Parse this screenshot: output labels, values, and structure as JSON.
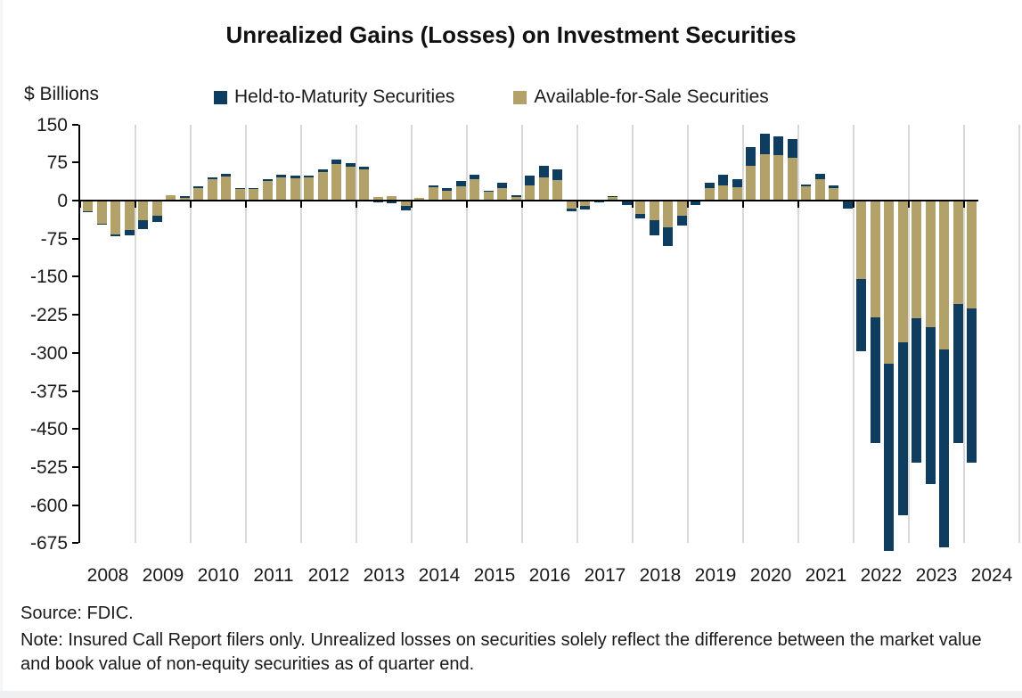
{
  "title": "Unrealized Gains (Losses) on Investment Securities",
  "y_axis_label": "$ Billions",
  "legend": [
    {
      "label": "Held-to-Maturity Securities",
      "color": "#0e3d5f"
    },
    {
      "label": "Available-for-Sale Securities",
      "color": "#b2a168"
    }
  ],
  "source": "Source: FDIC.",
  "note": "Note: Insured Call Report filers only. Unrealized losses on securities solely reflect the difference between the market value and book value of non-equity securities as of quarter end.",
  "colors": {
    "htm": "#0e3d5f",
    "afs": "#b2a168",
    "gridline": "#d9d9d9",
    "axis": "#000000"
  },
  "chart_data": {
    "type": "bar",
    "stacked": true,
    "title": "Unrealized Gains (Losses) on Investment Securities",
    "ylabel": "$ Billions",
    "unit": "USD billions",
    "ylim": [
      -675,
      150
    ],
    "y_ticks": [
      150,
      75,
      0,
      -75,
      -150,
      -225,
      -300,
      -375,
      -450,
      -525,
      -600,
      -675
    ],
    "x_tick_labels": [
      "2008",
      "2009",
      "2010",
      "2011",
      "2012",
      "2013",
      "2014",
      "2015",
      "2016",
      "2017",
      "2018",
      "2019",
      "2020",
      "2021",
      "2022",
      "2023",
      "2024"
    ],
    "quarters": [
      "2008Q1",
      "2008Q2",
      "2008Q3",
      "2008Q4",
      "2009Q1",
      "2009Q2",
      "2009Q3",
      "2009Q4",
      "2010Q1",
      "2010Q2",
      "2010Q3",
      "2010Q4",
      "2011Q1",
      "2011Q2",
      "2011Q3",
      "2011Q4",
      "2012Q1",
      "2012Q2",
      "2012Q3",
      "2012Q4",
      "2013Q1",
      "2013Q2",
      "2013Q3",
      "2013Q4",
      "2014Q1",
      "2014Q2",
      "2014Q3",
      "2014Q4",
      "2015Q1",
      "2015Q2",
      "2015Q3",
      "2015Q4",
      "2016Q1",
      "2016Q2",
      "2016Q3",
      "2016Q4",
      "2017Q1",
      "2017Q2",
      "2017Q3",
      "2017Q4",
      "2018Q1",
      "2018Q2",
      "2018Q3",
      "2018Q4",
      "2019Q1",
      "2019Q2",
      "2019Q3",
      "2019Q4",
      "2020Q1",
      "2020Q2",
      "2020Q3",
      "2020Q4",
      "2021Q1",
      "2021Q2",
      "2021Q3",
      "2021Q4",
      "2022Q1",
      "2022Q2",
      "2022Q3",
      "2022Q4",
      "2023Q1",
      "2023Q2",
      "2023Q3",
      "2023Q4",
      "2024Q1"
    ],
    "series": [
      {
        "name": "Available-for-Sale Securities",
        "color": "#b2a168",
        "values": [
          -21,
          -45,
          -66,
          -58,
          -38,
          -30,
          10,
          6,
          24,
          42,
          48,
          23,
          23,
          39,
          46,
          44,
          45,
          56,
          72,
          67,
          61,
          7,
          9,
          -11,
          5,
          26,
          19,
          28,
          42,
          17,
          25,
          7,
          30,
          46,
          41,
          -15,
          -11,
          0,
          7,
          -2,
          -26,
          -38,
          -53,
          -30,
          0,
          24,
          29,
          27,
          69,
          92,
          90,
          84,
          28,
          43,
          25,
          0,
          -155,
          -230,
          -322,
          -280,
          -232,
          -249,
          -294,
          -204,
          -212
        ]
      },
      {
        "name": "Held-to-Maturity Securities",
        "color": "#0e3d5f",
        "values": [
          -1,
          -3,
          -4,
          -10,
          -18,
          -12,
          0,
          2,
          4,
          3,
          5,
          1,
          2,
          4,
          5,
          5,
          5,
          6,
          9,
          7,
          6,
          -4,
          -5,
          -8,
          -2,
          3,
          5,
          10,
          9,
          3,
          10,
          3,
          19,
          23,
          20,
          -6,
          -6,
          -3,
          2,
          -7,
          -10,
          -31,
          -36,
          -19,
          -8,
          11,
          22,
          15,
          37,
          40,
          36,
          38,
          3,
          10,
          4,
          -16,
          -142,
          -248,
          -368,
          -340,
          -284,
          -310,
          -390,
          -274,
          -305
        ]
      }
    ],
    "legend_position": "top",
    "grid": "vertical-year-separators"
  }
}
